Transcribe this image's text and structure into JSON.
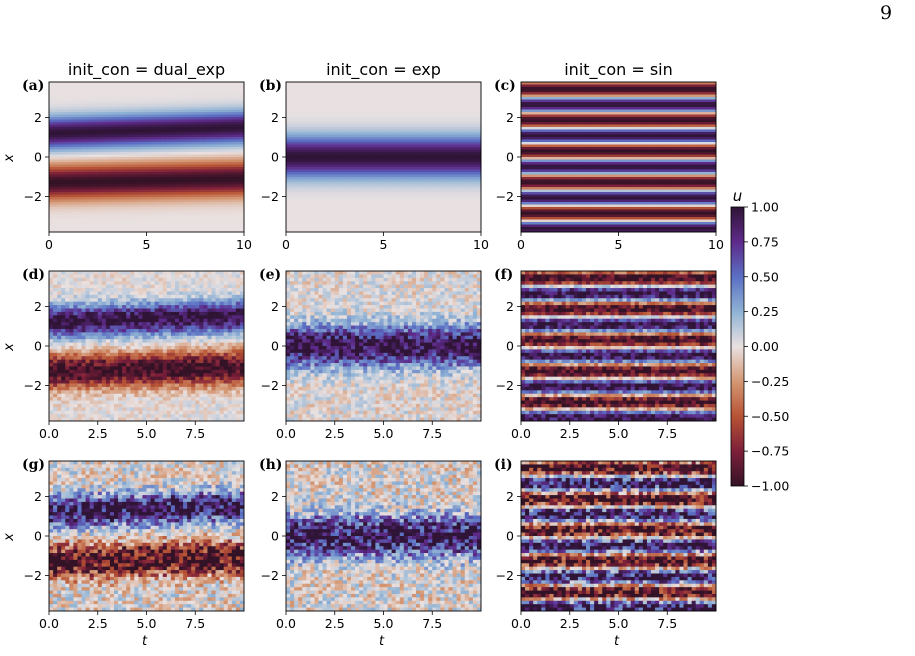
{
  "page_number": "9",
  "figure": {
    "column_titles": [
      "init_con = dual_exp",
      "init_con = exp",
      "init_con = sin"
    ],
    "panel_labels": [
      "(a)",
      "(b)",
      "(c)",
      "(d)",
      "(e)",
      "(f)",
      "(g)",
      "(h)",
      "(i)"
    ],
    "y_label": "x",
    "x_label": "t",
    "colorbar": {
      "label": "u",
      "ticks": [
        "1.00",
        "0.75",
        "0.50",
        "0.25",
        "0.00",
        "−0.25",
        "−0.50",
        "−0.75",
        "−1.00"
      ],
      "range": [
        -1,
        1
      ],
      "colormap": "twilight_shifted",
      "colors": [
        "#2f1436",
        "#5e2a8a",
        "#5a6fc4",
        "#8fb2d4",
        "#e9e1e1",
        "#d49773",
        "#b75334",
        "#7d1f3a",
        "#331226"
      ]
    }
  },
  "chart_data": [
    {
      "panel": "(a)",
      "type": "heatmap",
      "title": "init_con = dual_exp",
      "ylabel": "x",
      "xlabel": "",
      "x_ticks": [
        "0",
        "5",
        "10"
      ],
      "y_ticks": [
        "2",
        "0",
        "-2"
      ],
      "xlim": [
        0,
        10
      ],
      "ylim": [
        -3.8,
        3.8
      ],
      "field": "dual_exp",
      "noise": 0
    },
    {
      "panel": "(b)",
      "type": "heatmap",
      "title": "init_con = exp",
      "xlabel": "",
      "x_ticks": [
        "0",
        "5",
        "10"
      ],
      "y_ticks": [
        "2",
        "0",
        "-2"
      ],
      "xlim": [
        0,
        10
      ],
      "ylim": [
        -3.8,
        3.8
      ],
      "field": "exp",
      "noise": 0
    },
    {
      "panel": "(c)",
      "type": "heatmap",
      "title": "init_con = sin",
      "xlabel": "",
      "x_ticks": [
        "0",
        "5",
        "10"
      ],
      "y_ticks": [
        "2",
        "0",
        "-2"
      ],
      "xlim": [
        0,
        10
      ],
      "ylim": [
        -3.8,
        3.8
      ],
      "field": "sin",
      "noise": 0
    },
    {
      "panel": "(d)",
      "type": "heatmap",
      "ylabel": "x",
      "xlabel": "",
      "x_ticks": [
        "0.0",
        "2.5",
        "5.0",
        "7.5"
      ],
      "y_ticks": [
        "2",
        "0",
        "-2"
      ],
      "xlim": [
        0,
        10
      ],
      "ylim": [
        -3.8,
        3.8
      ],
      "field": "dual_exp",
      "noise": 0.2
    },
    {
      "panel": "(e)",
      "type": "heatmap",
      "xlabel": "",
      "x_ticks": [
        "0.0",
        "2.5",
        "5.0",
        "7.5"
      ],
      "y_ticks": [
        "2",
        "0",
        "-2"
      ],
      "xlim": [
        0,
        10
      ],
      "ylim": [
        -3.8,
        3.8
      ],
      "field": "exp",
      "noise": 0.3
    },
    {
      "panel": "(f)",
      "type": "heatmap",
      "xlabel": "",
      "x_ticks": [
        "0.0",
        "2.5",
        "5.0",
        "7.5"
      ],
      "y_ticks": [
        "2",
        "0",
        "-2"
      ],
      "xlim": [
        0,
        10
      ],
      "ylim": [
        -3.8,
        3.8
      ],
      "field": "sin",
      "noise": 0.25
    },
    {
      "panel": "(g)",
      "type": "heatmap",
      "ylabel": "x",
      "xlabel": "t",
      "x_ticks": [
        "0.0",
        "2.5",
        "5.0",
        "7.5"
      ],
      "y_ticks": [
        "2",
        "0",
        "-2"
      ],
      "xlim": [
        0,
        10
      ],
      "ylim": [
        -3.8,
        3.8
      ],
      "field": "dual_exp",
      "noise": 0.45
    },
    {
      "panel": "(h)",
      "type": "heatmap",
      "xlabel": "t",
      "x_ticks": [
        "0.0",
        "2.5",
        "5.0",
        "7.5"
      ],
      "y_ticks": [
        "2",
        "0",
        "-2"
      ],
      "xlim": [
        0,
        10
      ],
      "ylim": [
        -3.8,
        3.8
      ],
      "field": "exp",
      "noise": 0.45
    },
    {
      "panel": "(i)",
      "type": "heatmap",
      "xlabel": "t",
      "x_ticks": [
        "0.0",
        "2.5",
        "5.0",
        "7.5"
      ],
      "y_ticks": [
        "2",
        "0",
        "-2"
      ],
      "xlim": [
        0,
        10
      ],
      "ylim": [
        -3.8,
        3.8
      ],
      "field": "sin",
      "noise": 0.5
    }
  ]
}
